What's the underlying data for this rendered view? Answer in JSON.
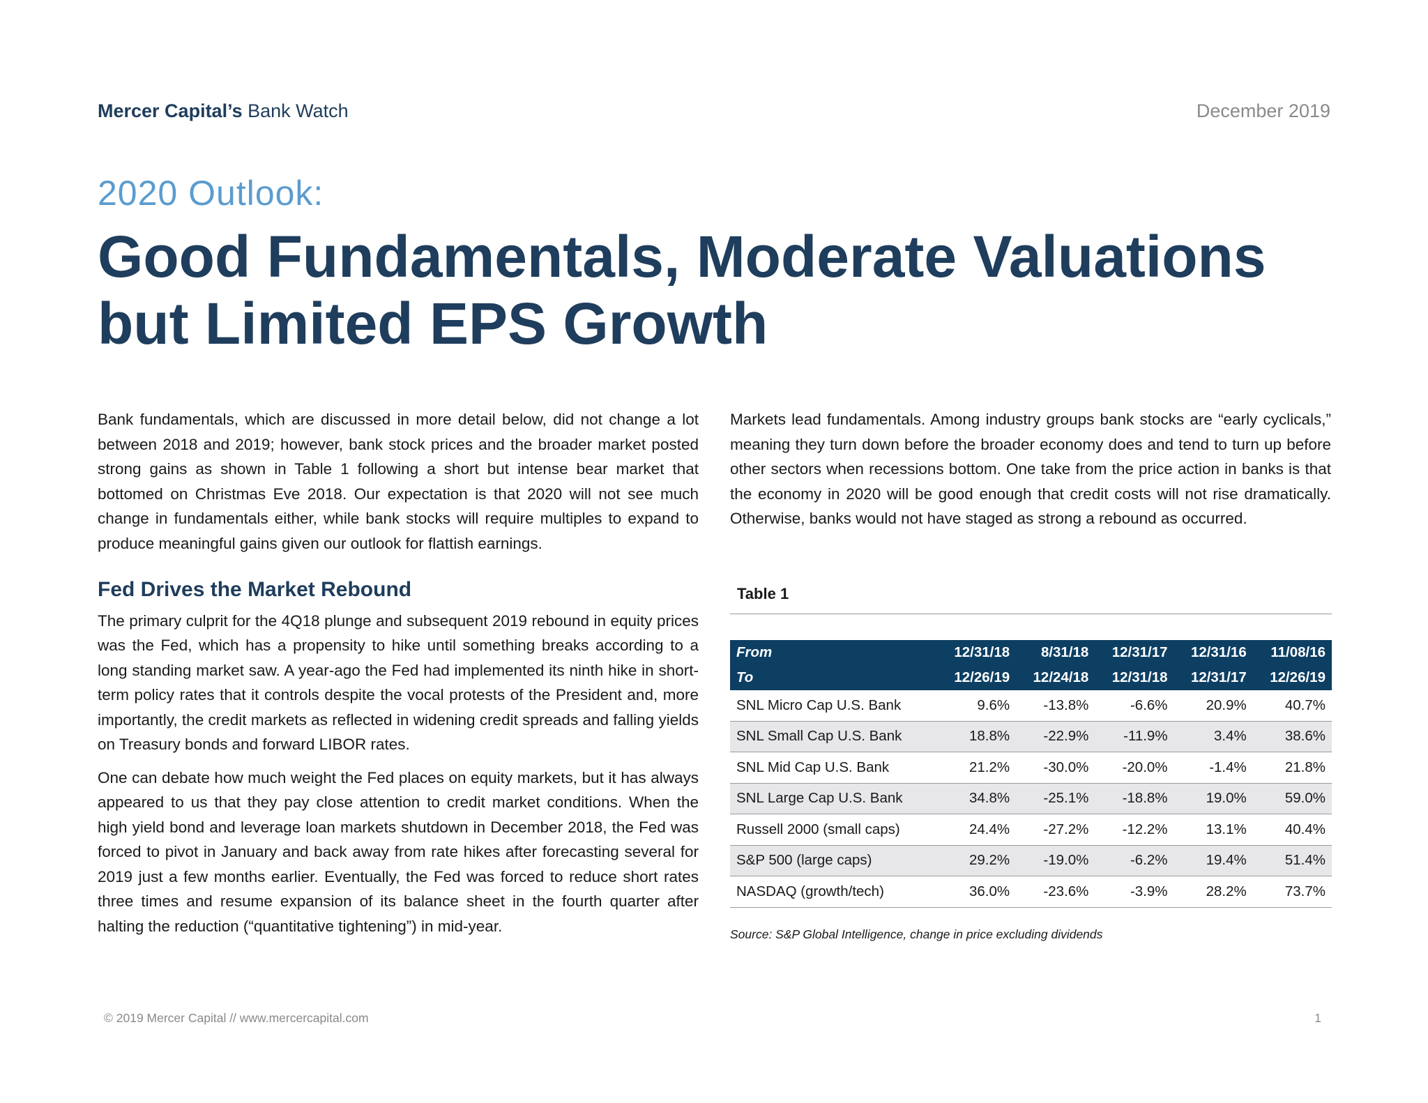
{
  "header": {
    "brand_bold": "Mercer Capital’s",
    "brand_rest": " Bank Watch",
    "date": "December 2019"
  },
  "article": {
    "kicker": "2020 Outlook:",
    "title": "Good Fundamentals, Moderate Valuations but Limited EPS Growth",
    "left": {
      "intro": "Bank fundamentals, which are discussed in more detail below, did not change a lot between 2018 and 2019; however, bank stock prices and the broader market posted strong gains as shown in Table 1 following a short but intense bear market that bottomed on Christmas Eve 2018.  Our expectation is that 2020 will not see much change in fundamentals either, while bank stocks will require multiples to expand to produce meaningful gains given our outlook for flattish earnings.",
      "heading": "Fed Drives the Market Rebound",
      "para1": "The primary culprit for the 4Q18 plunge and subsequent 2019 rebound in equity prices was the Fed, which has a propensity to hike until something breaks according to a long standing market saw.  A year-ago the Fed had implemented its ninth hike in short-term policy rates that it controls despite the vocal protests of the President and, more importantly, the credit markets as reflected in widening credit spreads and falling yields on Treasury bonds and forward LIBOR rates.",
      "para2": "One can debate how much weight the Fed places on equity markets, but it has always appeared to us that they pay close attention to credit market conditions.  When the high yield bond and leverage loan markets shutdown in December 2018, the Fed was forced to pivot in January and back away from rate hikes after forecasting several for 2019 just a few months earlier.  Eventually, the Fed was forced to reduce short rates three times and resume expansion of its balance sheet in the fourth quarter after halting the reduction (“quantitative tightening”) in mid-year."
    },
    "right": {
      "para1": "Markets lead fundamentals.  Among industry groups bank stocks are “early cyclicals,” meaning they turn down before the broader economy does and tend to turn up before other sectors when recessions bottom.  One take from the price action in banks is that the economy in 2020 will be good enough that credit costs will not rise dramatically. Otherwise, banks would not have staged as strong a rebound as occurred."
    }
  },
  "table": {
    "title": "Table 1",
    "from_label": "From",
    "to_label": "To",
    "from": [
      "12/31/18",
      "8/31/18",
      "12/31/17",
      "12/31/16",
      "11/08/16"
    ],
    "to": [
      "12/26/19",
      "12/24/18",
      "12/31/18",
      "12/31/17",
      "12/26/19"
    ],
    "rows": [
      {
        "name": "SNL Micro Cap U.S. Bank",
        "values": [
          "9.6%",
          "-13.8%",
          "-6.6%",
          "20.9%",
          "40.7%"
        ]
      },
      {
        "name": "SNL Small Cap U.S. Bank",
        "values": [
          "18.8%",
          "-22.9%",
          "-11.9%",
          "3.4%",
          "38.6%"
        ]
      },
      {
        "name": "SNL Mid Cap U.S. Bank",
        "values": [
          "21.2%",
          "-30.0%",
          "-20.0%",
          "-1.4%",
          "21.8%"
        ]
      },
      {
        "name": "SNL Large Cap U.S. Bank",
        "values": [
          "34.8%",
          "-25.1%",
          "-18.8%",
          "19.0%",
          "59.0%"
        ]
      },
      {
        "name": "Russell 2000 (small caps)",
        "values": [
          "24.4%",
          "-27.2%",
          "-12.2%",
          "13.1%",
          "40.4%"
        ]
      },
      {
        "name": "S&P 500 (large caps)",
        "values": [
          "29.2%",
          "-19.0%",
          "-6.2%",
          "19.4%",
          "51.4%"
        ]
      },
      {
        "name": "NASDAQ (growth/tech)",
        "values": [
          "36.0%",
          "-23.6%",
          "-3.9%",
          "28.2%",
          "73.7%"
        ]
      }
    ],
    "source": "Source: S&P Global Intelligence, change in price excluding dividends"
  },
  "footer": {
    "copyright": "© 2019 Mercer Capital // www.mercercapital.com",
    "page": "1"
  }
}
